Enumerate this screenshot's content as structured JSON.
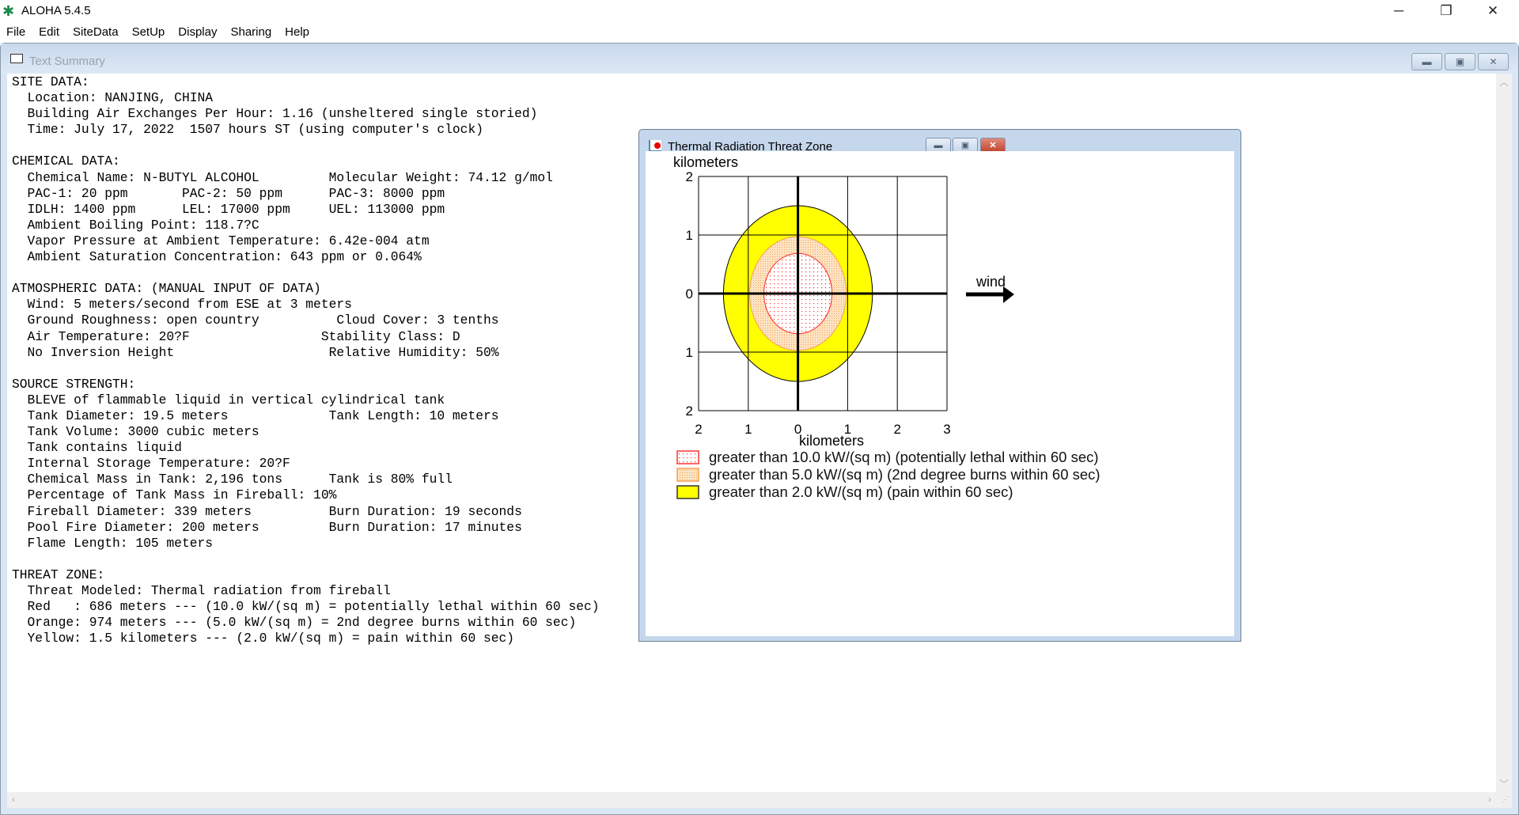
{
  "app": {
    "title": "ALOHA 5.4.5",
    "icon": "palm-tree-icon"
  },
  "menu": [
    "File",
    "Edit",
    "SiteData",
    "SetUp",
    "Display",
    "Sharing",
    "Help"
  ],
  "text_summary": {
    "title": "Text Summary",
    "lines": [
      "SITE DATA:",
      "  Location: NANJING, CHINA",
      "  Building Air Exchanges Per Hour: 1.16 (unsheltered single storied)",
      "  Time: July 17, 2022  1507 hours ST (using computer's clock)",
      "",
      "CHEMICAL DATA:",
      "  Chemical Name: N-BUTYL ALCOHOL         Molecular Weight: 74.12 g/mol",
      "  PAC-1: 20 ppm       PAC-2: 50 ppm      PAC-3: 8000 ppm",
      "  IDLH: 1400 ppm      LEL: 17000 ppm     UEL: 113000 ppm",
      "  Ambient Boiling Point: 118.7?C",
      "  Vapor Pressure at Ambient Temperature: 6.42e-004 atm",
      "  Ambient Saturation Concentration: 643 ppm or 0.064%",
      "",
      "ATMOSPHERIC DATA: (MANUAL INPUT OF DATA)",
      "  Wind: 5 meters/second from ESE at 3 meters",
      "  Ground Roughness: open country          Cloud Cover: 3 tenths",
      "  Air Temperature: 20?F                 Stability Class: D",
      "  No Inversion Height                    Relative Humidity: 50%",
      "",
      "SOURCE STRENGTH:",
      "  BLEVE of flammable liquid in vertical cylindrical tank",
      "  Tank Diameter: 19.5 meters             Tank Length: 10 meters",
      "  Tank Volume: 3000 cubic meters",
      "  Tank contains liquid",
      "  Internal Storage Temperature: 20?F",
      "  Chemical Mass in Tank: 2,196 tons      Tank is 80% full",
      "  Percentage of Tank Mass in Fireball: 10%",
      "  Fireball Diameter: 339 meters          Burn Duration: 19 seconds",
      "  Pool Fire Diameter: 200 meters         Burn Duration: 17 minutes",
      "  Flame Length: 105 meters",
      "",
      "THREAT ZONE:",
      "  Threat Modeled: Thermal radiation from fireball",
      "  Red   : 686 meters --- (10.0 kW/(sq m) = potentially lethal within 60 sec)",
      "  Orange: 974 meters --- (5.0 kW/(sq m) = 2nd degree burns within 60 sec)",
      "  Yellow: 1.5 kilometers --- (2.0 kW/(sq m) = pain within 60 sec)"
    ]
  },
  "threat_window": {
    "title": "Thermal Radiation Threat Zone"
  },
  "chart_data": {
    "type": "area",
    "xlabel": "kilometers",
    "ylabel": "kilometers",
    "xlim": [
      -2,
      3
    ],
    "ylim": [
      -2,
      2
    ],
    "x_ticks": [
      {
        "v": -2,
        "label": "2"
      },
      {
        "v": -1,
        "label": "1"
      },
      {
        "v": 0,
        "label": "0"
      },
      {
        "v": 1,
        "label": "1"
      },
      {
        "v": 2,
        "label": "2"
      },
      {
        "v": 3,
        "label": "3"
      }
    ],
    "y_ticks": [
      {
        "v": 2,
        "label": "2"
      },
      {
        "v": 1,
        "label": "1"
      },
      {
        "v": 0,
        "label": "0"
      },
      {
        "v": -1,
        "label": "1"
      },
      {
        "v": -2,
        "label": "2"
      }
    ],
    "grid": true,
    "zones": [
      {
        "name": "greater than 2.0 kW/(sq m) (pain within 60 sec)",
        "radius_km": 1.5,
        "color": "#ffff00"
      },
      {
        "name": "greater than 5.0 kW/(sq m) (2nd degree burns within 60 sec)",
        "radius_km": 0.974,
        "color": "#f5a050"
      },
      {
        "name": "greater than 10.0 kW/(sq m) (potentially lethal within 60 sec)",
        "radius_km": 0.686,
        "color": "#ff2020"
      }
    ],
    "legend_order": [
      2,
      1,
      0
    ],
    "wind_label": "wind",
    "wind_direction": "east"
  }
}
